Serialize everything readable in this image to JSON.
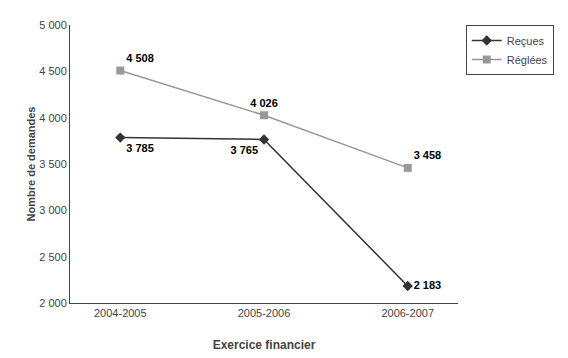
{
  "chart_data": {
    "type": "line",
    "categories": [
      "2004-2005",
      "2005-2006",
      "2006-2007"
    ],
    "series": [
      {
        "name": "Reçues",
        "color": "#333333",
        "marker": "diamond",
        "line_style": "solid",
        "values": [
          3785,
          3765,
          2183
        ],
        "value_labels": [
          "3 785",
          "3 765",
          "2 183"
        ]
      },
      {
        "name": "Réglées",
        "color": "#999999",
        "marker": "square",
        "line_style": "solid",
        "values": [
          4508,
          4026,
          3458
        ],
        "value_labels": [
          "4 508",
          "4 026",
          "3 458"
        ]
      }
    ],
    "xlabel": "Exercice financier",
    "ylabel": "Nombre de demandes",
    "ylim": [
      2000,
      5000
    ],
    "yticks": [
      {
        "value": 2000,
        "label": "2 000"
      },
      {
        "value": 2500,
        "label": "2 500"
      },
      {
        "value": 3000,
        "label": "3 000"
      },
      {
        "value": 3500,
        "label": "3 500"
      },
      {
        "value": 4000,
        "label": "4 000"
      },
      {
        "value": 4500,
        "label": "4 500"
      },
      {
        "value": 5000,
        "label": "5 000"
      }
    ],
    "grid": false,
    "legend": "right",
    "data_labels": true
  }
}
